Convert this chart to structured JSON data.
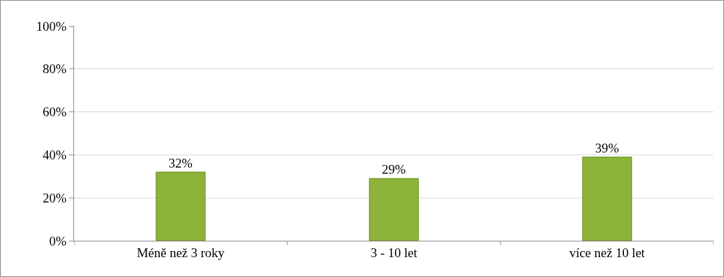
{
  "chart_data": {
    "type": "bar",
    "categories": [
      "Méně než 3 roky",
      "3 - 10 let",
      "více než 10 let"
    ],
    "values": [
      32,
      29,
      39
    ],
    "value_labels": [
      "32%",
      "29%",
      "39%"
    ],
    "color": "#8db33a",
    "ylim": [
      0,
      100
    ],
    "yticks": [
      {
        "value": 0,
        "label": "0%"
      },
      {
        "value": 20,
        "label": "20%"
      },
      {
        "value": 40,
        "label": "40%"
      },
      {
        "value": 60,
        "label": "60%"
      },
      {
        "value": 80,
        "label": "80%"
      },
      {
        "value": 100,
        "label": "100%"
      }
    ],
    "grid": "y"
  }
}
